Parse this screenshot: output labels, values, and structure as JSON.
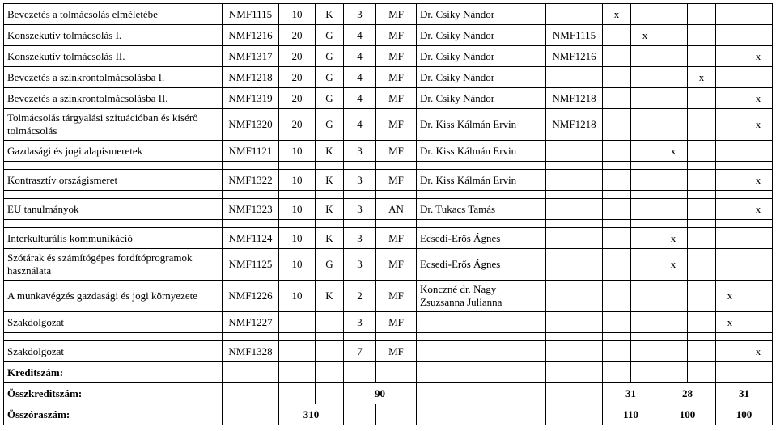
{
  "rows": [
    {
      "name": "Bevezetés a tolmácsolás elméletébe",
      "code": "NMF1115",
      "hours": "10",
      "type": "K",
      "credits": "3",
      "form": "MF",
      "teacher": "Dr. Csiky Nándor",
      "prereq": "",
      "marks": [
        "x",
        "",
        "",
        "",
        "",
        ""
      ]
    },
    {
      "name": "Konszekutív tolmácsolás I.",
      "code": "NMF1216",
      "hours": "20",
      "type": "G",
      "credits": "4",
      "form": "MF",
      "teacher": "Dr. Csiky Nándor",
      "prereq": "NMF1115",
      "marks": [
        "",
        "x",
        "",
        "",
        "",
        ""
      ]
    },
    {
      "name": "Konszekutív tolmácsolás II.",
      "code": "NMF1317",
      "hours": "20",
      "type": "G",
      "credits": "4",
      "form": "MF",
      "teacher": "Dr. Csiky Nándor",
      "prereq": "NMF1216",
      "marks": [
        "",
        "",
        "",
        "",
        "",
        "x"
      ]
    },
    {
      "name": "Bevezetés a szinkrontolmácsolásba I.",
      "code": "NMF1218",
      "hours": "20",
      "type": "G",
      "credits": "4",
      "form": "MF",
      "teacher": "Dr. Csiky Nándor",
      "prereq": "",
      "marks": [
        "",
        "",
        "",
        "x",
        "",
        ""
      ]
    },
    {
      "name": "Bevezetés a szinkrontolmácsolásba II.",
      "code": "NMF1319",
      "hours": "20",
      "type": "G",
      "credits": "4",
      "form": "MF",
      "teacher": "Dr. Csiky Nándor",
      "prereq": "NMF1218",
      "marks": [
        "",
        "",
        "",
        "",
        "",
        "x"
      ]
    },
    {
      "name": "Tolmácsolás tárgyalási szituációban és kísérő tolmácsolás",
      "code": "NMF1320",
      "hours": "20",
      "type": "G",
      "credits": "4",
      "form": "MF",
      "teacher": "Dr. Kiss Kálmán Ervin",
      "prereq": "NMF1218",
      "marks": [
        "",
        "",
        "",
        "",
        "",
        "x"
      ]
    },
    {
      "name": "Gazdasági és jogi alapismeretek",
      "code": "NMF1121",
      "hours": "10",
      "type": "K",
      "credits": "3",
      "form": "MF",
      "teacher": "Dr. Kiss Kálmán Ervin",
      "prereq": "",
      "marks": [
        "",
        "",
        "x",
        "",
        "",
        ""
      ]
    },
    "spacer",
    {
      "name": "Kontrasztív országismeret",
      "code": "NMF1322",
      "hours": "10",
      "type": "K",
      "credits": "3",
      "form": "MF",
      "teacher": "Dr. Kiss Kálmán Ervin",
      "prereq": "",
      "marks": [
        "",
        "",
        "",
        "",
        "",
        "x"
      ]
    },
    "spacer",
    {
      "name": "EU tanulmányok",
      "code": "NMF1323",
      "hours": "10",
      "type": "K",
      "credits": "3",
      "form": "AN",
      "teacher": "Dr. Tukacs Tamás",
      "prereq": "",
      "marks": [
        "",
        "",
        "",
        "",
        "",
        "x"
      ]
    },
    "spacer",
    {
      "name": "Interkulturális kommunikáció",
      "code": "NMF1124",
      "hours": "10",
      "type": "K",
      "credits": "3",
      "form": "MF",
      "teacher": "Ecsedi-Erős Ágnes",
      "prereq": "",
      "marks": [
        "",
        "",
        "x",
        "",
        "",
        ""
      ]
    },
    {
      "name": "Szótárak és számítógépes fordítóprogramok használata",
      "code": "NMF1125",
      "hours": "10",
      "type": "G",
      "credits": "3",
      "form": "MF",
      "teacher": "Ecsedi-Erős Ágnes",
      "prereq": "",
      "marks": [
        "",
        "",
        "x",
        "",
        "",
        ""
      ]
    },
    {
      "name": "A munkavégzés gazdasági és jogi környezete",
      "code": "NMF1226",
      "hours": "10",
      "type": "K",
      "credits": "2",
      "form": "MF",
      "teacher": "Konczné dr. Nagy Zsuzsanna Julianna",
      "prereq": "",
      "marks": [
        "",
        "",
        "",
        "",
        "x",
        ""
      ]
    },
    {
      "name": "Szakdolgozat",
      "code": "NMF1227",
      "hours": "",
      "type": "",
      "credits": "3",
      "form": "MF",
      "teacher": "",
      "prereq": "",
      "marks": [
        "",
        "",
        "",
        "",
        "x",
        ""
      ]
    },
    "spacer",
    {
      "name": "Szakdolgozat",
      "code": "NMF1328",
      "hours": "",
      "type": "",
      "credits": "7",
      "form": "MF",
      "teacher": "",
      "prereq": "",
      "marks": [
        "",
        "",
        "",
        "",
        "",
        "x"
      ]
    }
  ],
  "footer": {
    "kreditszam_label": "Kreditszám:",
    "osszkreditszam_label": "Összkreditszám:",
    "osszkreditszam_value": "90",
    "osszkreditszam_a": "31",
    "osszkreditszam_b": "28",
    "osszkreditszam_c": "31",
    "osszoraszam_label": "Összóraszám:",
    "osszoraszam_value": "310",
    "osszoraszam_a": "110",
    "osszoraszam_b": "100",
    "osszoraszam_c": "100"
  }
}
